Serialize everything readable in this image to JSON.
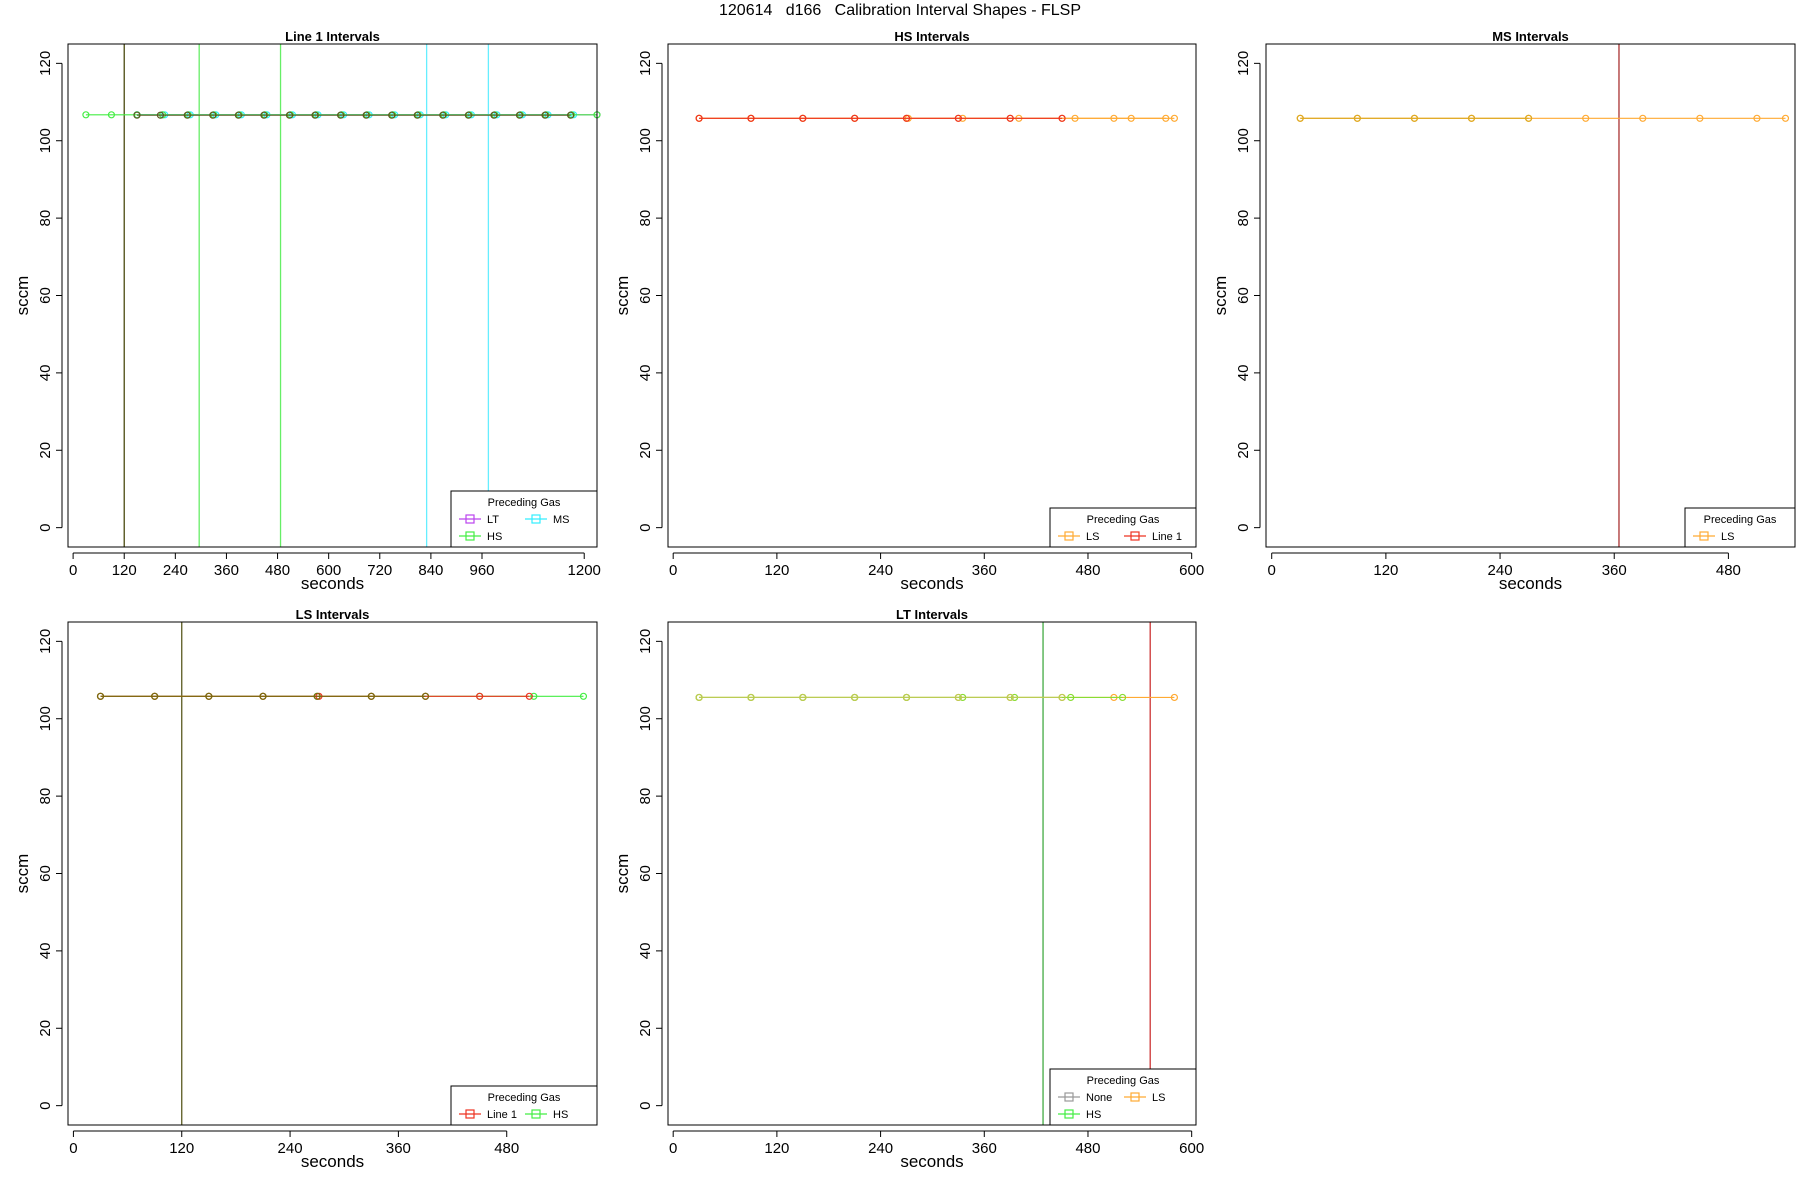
{
  "page_title": "120614   d166   Calibration Interval Shapes - FLSP",
  "chart_data": [
    {
      "id": "line1",
      "type": "line",
      "title": "Line 1 Intervals",
      "xlabel": "seconds",
      "ylabel": "sccm",
      "xlim": [
        -12,
        1230
      ],
      "ylim": [
        -5,
        125
      ],
      "xticks": [
        0,
        120,
        240,
        360,
        480,
        600,
        720,
        840,
        960,
        1200
      ],
      "yticks": [
        0,
        20,
        40,
        60,
        80,
        100,
        120
      ],
      "legend": {
        "title": "Preceding Gas",
        "position": "bottom-right",
        "columns": 2,
        "entries": [
          {
            "name": "LT",
            "color": "#bb44ee"
          },
          {
            "name": "MS",
            "color": "#33eeff"
          },
          {
            "name": "HS",
            "color": "#44ee44"
          }
        ]
      },
      "vlines": [
        {
          "x": 120,
          "color": "#4a4a10"
        },
        {
          "x": 296,
          "color": "#66ee66"
        },
        {
          "x": 487,
          "color": "#66ee66"
        },
        {
          "x": 830,
          "color": "#66eeff"
        },
        {
          "x": 975,
          "color": "#66eeff"
        }
      ],
      "series": [
        {
          "name": "LT",
          "color": "#bb44ee",
          "x": [
            150,
            210,
            270,
            330,
            390,
            450,
            510,
            570,
            630,
            690,
            750,
            810,
            870,
            930,
            990,
            1050,
            1110,
            1170,
            1230
          ],
          "y": [
            106.7,
            106.7,
            106.7,
            106.7,
            106.7,
            106.7,
            106.7,
            106.7,
            106.7,
            106.7,
            106.7,
            106.7,
            106.7,
            106.7,
            106.7,
            106.7,
            106.7,
            106.7,
            106.7
          ]
        },
        {
          "name": "MS",
          "color": "#33eeff",
          "x": [
            150,
            215,
            275,
            335,
            395,
            455,
            515,
            575,
            635,
            695,
            755,
            815,
            875,
            935,
            995,
            1055,
            1115,
            1175
          ],
          "y": [
            106.7,
            106.7,
            106.7,
            106.7,
            106.7,
            106.7,
            106.7,
            106.7,
            106.7,
            106.7,
            106.7,
            106.7,
            106.7,
            106.7,
            106.7,
            106.7,
            106.7,
            106.7
          ]
        },
        {
          "name": "HS",
          "color": "#44ee44",
          "x": [
            30,
            90,
            150,
            210,
            270,
            330,
            390,
            450,
            510,
            570,
            630,
            690,
            750,
            810,
            870,
            930,
            990,
            1050,
            1110,
            1170,
            1230
          ],
          "y": [
            106.7,
            106.7,
            106.7,
            106.7,
            106.7,
            106.7,
            106.7,
            106.7,
            106.7,
            106.7,
            106.7,
            106.7,
            106.7,
            106.7,
            106.7,
            106.7,
            106.7,
            106.7,
            106.7,
            106.7,
            106.7
          ]
        },
        {
          "name": "",
          "color": "#5a5a20",
          "x": [
            150,
            205,
            268,
            328,
            388,
            448,
            508,
            568,
            628,
            688,
            748,
            808,
            868,
            928,
            988,
            1048,
            1108,
            1168
          ],
          "y": [
            106.6,
            106.6,
            106.6,
            106.6,
            106.6,
            106.6,
            106.6,
            106.6,
            106.6,
            106.6,
            106.6,
            106.6,
            106.6,
            106.6,
            106.6,
            106.6,
            106.6,
            106.6
          ]
        }
      ]
    },
    {
      "id": "hs",
      "type": "line",
      "title": "HS Intervals",
      "xlabel": "seconds",
      "ylabel": "sccm",
      "xlim": [
        -6,
        605
      ],
      "ylim": [
        -5,
        125
      ],
      "xticks": [
        0,
        120,
        240,
        360,
        480,
        600
      ],
      "yticks": [
        0,
        20,
        40,
        60,
        80,
        100,
        120
      ],
      "legend": {
        "title": "Preceding Gas",
        "position": "bottom-right",
        "columns": 2,
        "entries": [
          {
            "name": "LS",
            "color": "#ffaa33"
          },
          {
            "name": "Line 1",
            "color": "#ee3322"
          }
        ]
      },
      "vlines": [],
      "series": [
        {
          "name": "LS",
          "color": "#ffaa33",
          "x": [
            30,
            90,
            150,
            210,
            270,
            330,
            390,
            450,
            510,
            570
          ],
          "y": [
            105.8,
            105.8,
            105.8,
            105.8,
            105.8,
            105.8,
            105.8,
            105.8,
            105.8,
            105.8
          ]
        },
        {
          "name": "LS",
          "color": "#ffaa33",
          "x": [
            30,
            90,
            150,
            210,
            272,
            335,
            400,
            465,
            530,
            580
          ],
          "y": [
            105.8,
            105.8,
            105.8,
            105.8,
            105.8,
            105.8,
            105.8,
            105.8,
            105.8,
            105.8
          ]
        },
        {
          "name": "Line 1",
          "color": "#ee3322",
          "x": [
            30,
            90,
            150,
            210,
            270,
            330,
            390,
            450
          ],
          "y": [
            105.8,
            105.8,
            105.8,
            105.8,
            105.8,
            105.8,
            105.8,
            105.8
          ]
        }
      ]
    },
    {
      "id": "ms",
      "type": "line",
      "title": "MS Intervals",
      "xlabel": "seconds",
      "ylabel": "sccm",
      "xlim": [
        -6,
        550
      ],
      "ylim": [
        -5,
        125
      ],
      "xticks": [
        0,
        120,
        240,
        360,
        480
      ],
      "yticks": [
        0,
        20,
        40,
        60,
        80,
        100,
        120
      ],
      "legend": {
        "title": "Preceding Gas",
        "position": "bottom-right",
        "columns": 1,
        "entries": [
          {
            "name": "LS",
            "color": "#ffaa33"
          }
        ]
      },
      "vlines": [
        {
          "x": 365,
          "color": "#aa3333"
        }
      ],
      "series": [
        {
          "name": "LS",
          "color": "#ffaa33",
          "x": [
            30,
            90,
            150,
            210,
            270,
            330,
            390,
            450,
            510,
            540
          ],
          "y": [
            105.8,
            105.8,
            105.8,
            105.8,
            105.8,
            105.8,
            105.8,
            105.8,
            105.8,
            105.8
          ]
        },
        {
          "name": "LS",
          "color": "#ddaa22",
          "x": [
            30,
            90,
            150,
            210,
            270
          ],
          "y": [
            105.8,
            105.8,
            105.8,
            105.8,
            105.8
          ]
        }
      ]
    },
    {
      "id": "ls",
      "type": "line",
      "title": "LS Intervals",
      "xlabel": "seconds",
      "ylabel": "sccm",
      "xlim": [
        -6,
        580
      ],
      "ylim": [
        -5,
        125
      ],
      "xticks": [
        0,
        120,
        240,
        360,
        480
      ],
      "yticks": [
        0,
        20,
        40,
        60,
        80,
        100,
        120
      ],
      "legend": {
        "title": "Preceding Gas",
        "position": "bottom-right",
        "columns": 2,
        "entries": [
          {
            "name": "Line 1",
            "color": "#ee3322"
          },
          {
            "name": "HS",
            "color": "#44ee44"
          }
        ]
      },
      "vlines": [
        {
          "x": 120,
          "color": "#5a5a20"
        }
      ],
      "series": [
        {
          "name": "HS",
          "color": "#44ee44",
          "x": [
            30,
            90,
            150,
            210,
            270,
            330,
            390,
            450,
            510,
            565
          ],
          "y": [
            105.8,
            105.8,
            105.8,
            105.8,
            105.8,
            105.8,
            105.8,
            105.8,
            105.8,
            105.8
          ]
        },
        {
          "name": "Line 1",
          "color": "#ee3322",
          "x": [
            30,
            90,
            150,
            210,
            272,
            330,
            390,
            450,
            505
          ],
          "y": [
            105.8,
            105.8,
            105.8,
            105.8,
            105.8,
            105.8,
            105.8,
            105.8,
            105.8
          ]
        },
        {
          "name": "",
          "color": "#7a6a10",
          "x": [
            30,
            90,
            150,
            210,
            270,
            330,
            390
          ],
          "y": [
            105.8,
            105.8,
            105.8,
            105.8,
            105.8,
            105.8,
            105.8
          ]
        }
      ]
    },
    {
      "id": "lt",
      "type": "line",
      "title": "LT Intervals",
      "xlabel": "seconds",
      "ylabel": "sccm",
      "xlim": [
        -6,
        605
      ],
      "ylim": [
        -5,
        125
      ],
      "xticks": [
        0,
        120,
        240,
        360,
        480,
        600
      ],
      "yticks": [
        0,
        20,
        40,
        60,
        80,
        100,
        120
      ],
      "legend": {
        "title": "Preceding Gas",
        "position": "bottom-right",
        "columns": 2,
        "entries": [
          {
            "name": "None",
            "color": "#999999"
          },
          {
            "name": "LS",
            "color": "#ffaa33"
          },
          {
            "name": "HS",
            "color": "#44ee44"
          }
        ]
      },
      "vlines": [
        {
          "x": 428,
          "color": "#44aa44"
        },
        {
          "x": 552,
          "color": "#cc3333"
        }
      ],
      "series": [
        {
          "name": "LS",
          "color": "#ffaa33",
          "x": [
            30,
            90,
            150,
            210,
            270,
            330,
            390,
            450,
            510,
            580
          ],
          "y": [
            105.5,
            105.5,
            105.5,
            105.5,
            105.5,
            105.5,
            105.5,
            105.5,
            105.5,
            105.5
          ]
        },
        {
          "name": "HS",
          "color": "#88dd33",
          "x": [
            30,
            90,
            150,
            210,
            270,
            335,
            395,
            460,
            520
          ],
          "y": [
            105.5,
            105.5,
            105.5,
            105.5,
            105.5,
            105.5,
            105.5,
            105.5,
            105.5
          ]
        },
        {
          "name": "None",
          "color": "#bbcc55",
          "x": [
            30,
            90,
            150,
            210,
            270,
            330,
            390,
            450
          ],
          "y": [
            105.5,
            105.5,
            105.5,
            105.5,
            105.5,
            105.5,
            105.5,
            105.5
          ]
        }
      ]
    }
  ]
}
